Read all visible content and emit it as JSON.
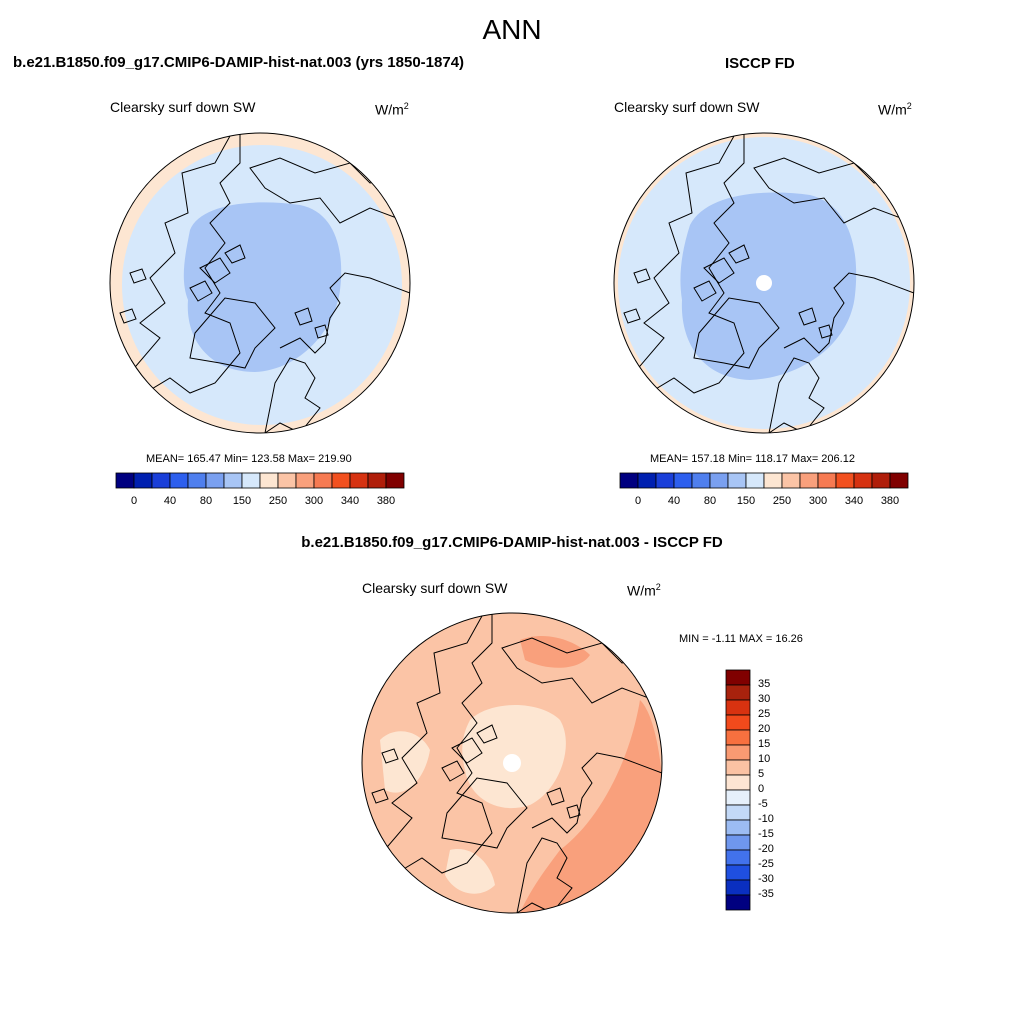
{
  "title": "ANN",
  "units_base": "W/m",
  "units_exp": "2",
  "panels": {
    "model": {
      "title": "b.e21.B1850.f09_g17.CMIP6-DAMIP-hist-nat.003 (yrs 1850-1874)",
      "variable": "Clearsky surf down SW",
      "stats": "MEAN= 165.47  Min= 123.58  Max= 219.90"
    },
    "obs": {
      "title": "ISCCP FD",
      "variable": "Clearsky surf down SW",
      "stats": "MEAN= 157.18  Min= 118.17  Max= 206.12"
    },
    "diff": {
      "title": "b.e21.B1850.f09_g17.CMIP6-DAMIP-hist-nat.003 - ISCCP FD",
      "variable": "Clearsky surf down SW",
      "stats": "MIN =  -1.11 MAX =  16.26"
    }
  },
  "chart_data": [
    {
      "type": "heatmap",
      "projection": "north-polar-stereographic",
      "title": "b.e21.B1850.f09_g17.CMIP6-DAMIP-hist-nat.003 (yrs 1850-1874)",
      "variable": "Clearsky surf down SW",
      "mean": 165.47,
      "min": 123.58,
      "max": 219.9,
      "colorbar": {
        "tick_labels": [
          "0",
          "40",
          "80",
          "150",
          "250",
          "300",
          "340",
          "380"
        ],
        "colors": [
          "#000080",
          "#0020b0",
          "#1a3fd9",
          "#2d5fee",
          "#4f7fee",
          "#7aa0f0",
          "#a8c5f5",
          "#d6e8fb",
          "#fde6d2",
          "#fbc4a6",
          "#f9a07c",
          "#f67a52",
          "#f2501f",
          "#d63211",
          "#b01e0a",
          "#800000"
        ]
      }
    },
    {
      "type": "heatmap",
      "projection": "north-polar-stereographic",
      "title": "ISCCP FD",
      "variable": "Clearsky surf down SW",
      "mean": 157.18,
      "min": 118.17,
      "max": 206.12,
      "colorbar": {
        "tick_labels": [
          "0",
          "40",
          "80",
          "150",
          "250",
          "300",
          "340",
          "380"
        ]
      }
    },
    {
      "type": "heatmap",
      "projection": "north-polar-stereographic",
      "title": "b.e21.B1850.f09_g17.CMIP6-DAMIP-hist-nat.003 - ISCCP FD",
      "variable": "Clearsky surf down SW",
      "min": -1.11,
      "max": 16.26,
      "colorbar": {
        "orientation": "vertical",
        "tick_labels": [
          "35",
          "30",
          "25",
          "20",
          "15",
          "10",
          "5",
          "0",
          "-5",
          "-10",
          "-15",
          "-20",
          "-25",
          "-30",
          "-35"
        ],
        "colors": [
          "#800000",
          "#a8220d",
          "#d83210",
          "#f24a1c",
          "#f7703f",
          "#f99a72",
          "#fbc2a3",
          "#fde5d3",
          "#e6f0fb",
          "#c3d9f7",
          "#9cbcf3",
          "#6f97ee",
          "#4272ec",
          "#1f4fe0",
          "#0a2fc0",
          "#000080"
        ]
      }
    }
  ]
}
